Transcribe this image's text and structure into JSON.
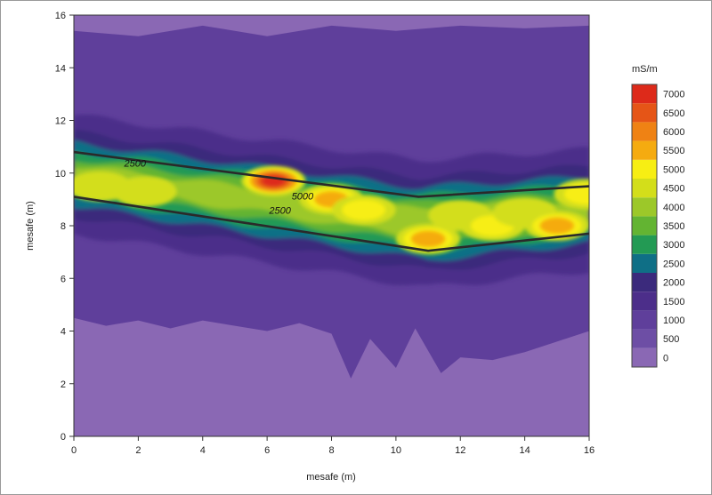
{
  "chart_data": {
    "type": "heatmap",
    "title": "",
    "xlabel": "mesafe (m)",
    "ylabel": "mesafe (m)",
    "xlim": [
      0,
      16
    ],
    "ylim": [
      0,
      16
    ],
    "x_ticks": [
      0,
      2,
      4,
      6,
      8,
      10,
      12,
      14,
      16
    ],
    "y_ticks": [
      0,
      2,
      4,
      6,
      8,
      10,
      12,
      14,
      16
    ],
    "colorbar": {
      "unit": "mS/m",
      "levels": [
        0,
        500,
        1000,
        1500,
        2000,
        2500,
        3000,
        3500,
        4000,
        4500,
        5000,
        5500,
        6000,
        6500,
        7000
      ],
      "colors": [
        "#8a68b4",
        "#6d4ea5",
        "#5f3f9b",
        "#4c2e8a",
        "#3b2a7c",
        "#0f6f86",
        "#239a54",
        "#63b432",
        "#9cc829",
        "#d3de1a",
        "#f7ee13",
        "#f5ab10",
        "#ef8214",
        "#e55517",
        "#dd2a1a"
      ]
    },
    "contour_labels": [
      {
        "text": "2500",
        "x": 1.9,
        "y": 10.25
      },
      {
        "text": "5000",
        "x": 7.1,
        "y": 9.0
      },
      {
        "text": "2500",
        "x": 6.4,
        "y": 8.45
      }
    ],
    "anomaly_boundary_lines": [
      [
        [
          0,
          10.8
        ],
        [
          10.7,
          9.1
        ],
        [
          16,
          9.5
        ]
      ],
      [
        [
          0,
          9.1
        ],
        [
          11,
          7.05
        ],
        [
          16,
          7.7
        ]
      ]
    ],
    "zones": [
      {
        "name": "lower",
        "ceiling": [
          [
            0,
            4.5
          ],
          [
            1,
            4.2
          ],
          [
            2,
            4.4
          ],
          [
            3,
            4.1
          ],
          [
            4,
            4.4
          ],
          [
            5,
            4.2
          ],
          [
            6,
            4.0
          ],
          [
            7,
            4.3
          ],
          [
            8,
            3.9
          ],
          [
            8.6,
            2.2
          ],
          [
            9.2,
            3.7
          ],
          [
            10,
            2.6
          ],
          [
            10.6,
            4.1
          ],
          [
            11.4,
            2.4
          ],
          [
            12,
            3.0
          ],
          [
            13,
            2.9
          ],
          [
            14,
            3.2
          ],
          [
            15,
            3.6
          ],
          [
            16,
            4.0
          ]
        ],
        "value": 0
      },
      {
        "name": "upper",
        "floor": [
          [
            0,
            15.4
          ],
          [
            2,
            15.2
          ],
          [
            4,
            15.6
          ],
          [
            6,
            15.2
          ],
          [
            8,
            15.6
          ],
          [
            10,
            15.4
          ],
          [
            12,
            15.6
          ],
          [
            14,
            15.5
          ],
          [
            16,
            15.6
          ]
        ],
        "value": 0
      }
    ],
    "high_spots": [
      {
        "x": 0.8,
        "y": 9.5,
        "value": 4500
      },
      {
        "x": 2.2,
        "y": 9.3,
        "value": 4500
      },
      {
        "x": 6.2,
        "y": 9.7,
        "value": 7000
      },
      {
        "x": 8.0,
        "y": 9.0,
        "value": 5500
      },
      {
        "x": 9.0,
        "y": 8.6,
        "value": 5000
      },
      {
        "x": 11.0,
        "y": 7.5,
        "value": 5500
      },
      {
        "x": 12.0,
        "y": 8.4,
        "value": 4500
      },
      {
        "x": 13.0,
        "y": 8.0,
        "value": 5000
      },
      {
        "x": 14.0,
        "y": 8.5,
        "value": 4500
      },
      {
        "x": 15.0,
        "y": 8.0,
        "value": 5500
      },
      {
        "x": 15.9,
        "y": 9.2,
        "value": 5000
      }
    ],
    "grid": false,
    "legend": "colorbar-right"
  }
}
